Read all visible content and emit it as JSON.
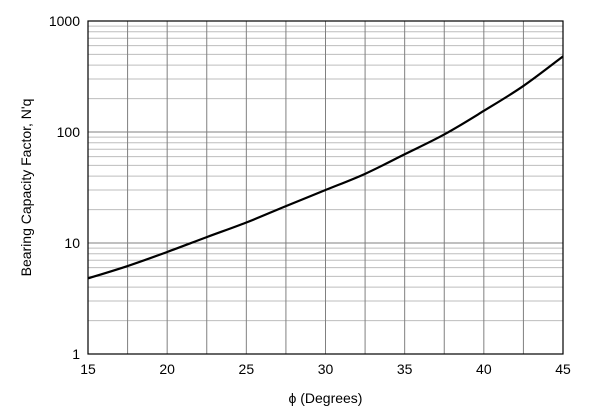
{
  "chart_data": {
    "type": "line",
    "title": "",
    "xlabel": "ϕ (Degrees)",
    "ylabel": "Bearing Capacity Factor, N'q",
    "xlim": [
      15,
      45
    ],
    "ylim": [
      1,
      1000
    ],
    "yscale": "log",
    "grid": true,
    "x_ticks": [
      15,
      20,
      25,
      30,
      35,
      40,
      45
    ],
    "x_tick_labels": [
      "15",
      "20",
      "25",
      "30",
      "35",
      "40",
      "45"
    ],
    "y_ticks": [
      1,
      10,
      100,
      1000
    ],
    "y_tick_labels": [
      "1",
      "10",
      "100",
      "1000"
    ],
    "series": [
      {
        "x": [
          15,
          17.5,
          20,
          22.5,
          25,
          27.5,
          30,
          32.5,
          35,
          37.5,
          40,
          42.5,
          45
        ],
        "values": [
          4.8,
          6.2,
          8.3,
          11.3,
          15.3,
          21.5,
          30,
          42,
          63,
          95,
          155,
          260,
          480
        ]
      }
    ]
  }
}
